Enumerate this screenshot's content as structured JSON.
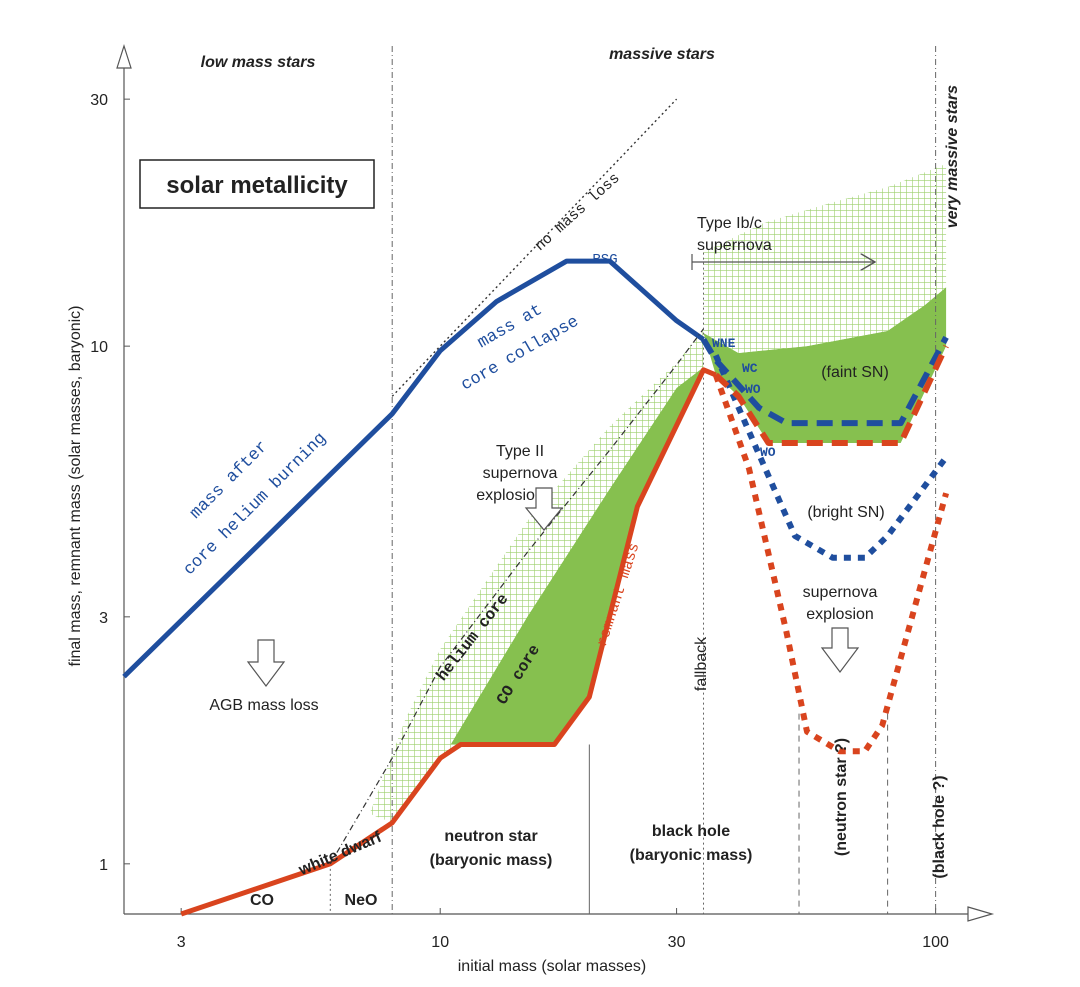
{
  "chart_data": {
    "type": "line",
    "xscale": "log",
    "yscale": "log",
    "xlim": [
      2.3,
      112
    ],
    "ylim": [
      0.8,
      38
    ],
    "xlabel": "initial mass (solar masses)",
    "ylabel": "final mass, remnant mass (solar masses, baryonic)",
    "xticks": [
      "3",
      "10",
      "30",
      "100"
    ],
    "yticks": [
      "1",
      "3",
      "10",
      "30"
    ],
    "title_box": "solar metallicity",
    "region_labels": {
      "low_mass": "low mass stars",
      "massive": "massive stars",
      "very_massive": "very massive stars"
    },
    "series": [
      {
        "name": "final mass (mass after core helium burning / mass at core collapse)",
        "color": "#1f4e9e",
        "style": "solid",
        "x": [
          2.3,
          8,
          10,
          13,
          18,
          22,
          30,
          34
        ],
        "y": [
          2.3,
          7.4,
          9.8,
          12.2,
          14.6,
          14.6,
          11.2,
          10.3
        ]
      },
      {
        "name": "final mass WNE/WC/WO (faint SN)",
        "color": "#1f4e9e",
        "style": "dashed",
        "x": [
          34,
          36,
          44,
          50,
          85,
          105
        ],
        "y": [
          10.3,
          9.4,
          7.6,
          7.1,
          7.1,
          10.4
        ]
      },
      {
        "name": "final mass WO (bright SN)",
        "color": "#1f4e9e",
        "style": "dotted",
        "x": [
          36,
          43,
          52,
          62,
          72,
          80,
          105
        ],
        "y": [
          9.6,
          6.5,
          4.3,
          3.9,
          3.9,
          4.3,
          6.1
        ]
      },
      {
        "name": "remnant mass",
        "color": "#d9441e",
        "style": "solid",
        "x": [
          3,
          6,
          8,
          10,
          11,
          17,
          20,
          25,
          34,
          36
        ],
        "y": [
          0.8,
          1.0,
          1.2,
          1.6,
          1.7,
          1.7,
          2.1,
          4.9,
          9.0,
          8.8
        ]
      },
      {
        "name": "remnant mass (faint SN)",
        "color": "#d9441e",
        "style": "dashed",
        "x": [
          36,
          40,
          46,
          85,
          105
        ],
        "y": [
          8.8,
          8.0,
          6.5,
          6.5,
          10.0
        ]
      },
      {
        "name": "remnant mass (supernova explosion)",
        "color": "#d9441e",
        "style": "dotted",
        "x": [
          36,
          42,
          50,
          55,
          64,
          72,
          78,
          105
        ],
        "y": [
          8.8,
          5.8,
          2.8,
          1.8,
          1.65,
          1.65,
          1.85,
          5.2
        ]
      },
      {
        "name": "helium core",
        "color": "#333333",
        "style": "dashdot",
        "x": [
          6,
          8,
          10,
          15,
          22,
          30,
          34
        ],
        "y": [
          1.0,
          1.6,
          2.4,
          4.0,
          6.3,
          9.2,
          10.8
        ]
      },
      {
        "name": "no mass loss",
        "color": "#333333",
        "style": "dotted",
        "x": [
          8,
          15,
          30
        ],
        "y": [
          8,
          15,
          30
        ]
      }
    ],
    "vertical_lines": [
      {
        "x": 8,
        "style": "dashdot",
        "label": ""
      },
      {
        "x": 6,
        "style": "dotted",
        "label": ""
      },
      {
        "x": 20,
        "style": "solid",
        "label": ""
      },
      {
        "x": 34,
        "style": "dotted",
        "label": "fallback"
      },
      {
        "x": 53,
        "style": "dashed",
        "label": ""
      },
      {
        "x": 80,
        "style": "dashed",
        "label": ""
      },
      {
        "x": 100,
        "style": "dashdot",
        "label": ""
      }
    ],
    "annotations": {
      "no_mass_loss": "no mass loss",
      "rsg": "RSG",
      "mass_at_core_collapse_1": "mass at",
      "mass_at_core_collapse_2": "core collapse",
      "mass_after_1": "mass after",
      "mass_after_2": "core helium burning",
      "type_ibc_1": "Type Ib/c",
      "type_ibc_2": "supernova",
      "wne": "WNE",
      "wc": "WC",
      "wo1": "WO",
      "wo2": "WO",
      "faint_sn": "(faint SN)",
      "bright_sn": "(bright SN)",
      "type_ii_1": "Type II",
      "type_ii_2": "supernova",
      "type_ii_3": "explosion",
      "sn_explosion_1": "supernova",
      "sn_explosion_2": "explosion",
      "helium_core": "helium core",
      "co_core": "CO core",
      "remnant_mass": "remnant mass",
      "fallback": "fallback",
      "agb_mass_loss": "AGB mass loss",
      "white_dwarf": "white dwarf",
      "co": "CO",
      "neo": "NeO",
      "neutron_star_1": "neutron star",
      "neutron_star_2": "(baryonic mass)",
      "black_hole_1": "black hole",
      "black_hole_2": "(baryonic mass)",
      "neutron_star_q": "(neutron star ?)",
      "black_hole_q": "(black hole ?)"
    },
    "colors": {
      "blue": "#1f4e9e",
      "red": "#d9441e",
      "green_fill": "#86c04f",
      "green_hatch": "#9ccf6c"
    }
  }
}
